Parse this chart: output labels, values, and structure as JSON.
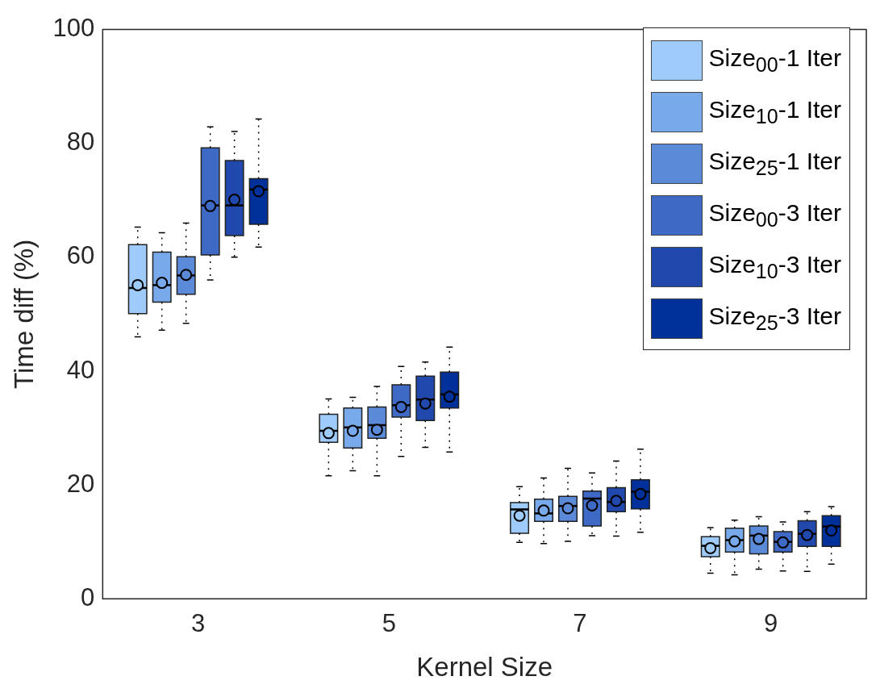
{
  "chart_data": {
    "type": "box",
    "xlabel": "Kernel Size",
    "ylabel": "Time diff (%)",
    "categories": [
      "3",
      "5",
      "7",
      "9"
    ],
    "ylim": [
      0,
      100
    ],
    "yticks": [
      0,
      20,
      40,
      60,
      80,
      100
    ],
    "grid": false,
    "legend": "top right",
    "marker": "circle",
    "series": [
      {
        "name": "Size$_{00}$-1 Iter",
        "color": "#9ecbf9",
        "boxes": [
          {
            "low": 46,
            "q1": 50.1,
            "median": 54.6,
            "q3": 62.2,
            "high": 65.3,
            "mean": 55.1
          },
          {
            "low": 21.6,
            "q1": 27.5,
            "median": 29.5,
            "q3": 32.4,
            "high": 35.1,
            "mean": 29.1
          },
          {
            "low": 9.9,
            "q1": 11.5,
            "median": 15.7,
            "q3": 16.9,
            "high": 19.7,
            "mean": 14.6
          },
          {
            "low": 4.5,
            "q1": 7.4,
            "median": 9.3,
            "q3": 10.9,
            "high": 12.5,
            "mean": 8.9
          }
        ]
      },
      {
        "name": "Size$_{10}$-1 Iter",
        "color": "#78a9ea",
        "boxes": [
          {
            "low": 47.2,
            "q1": 52.1,
            "median": 55.1,
            "q3": 60.9,
            "high": 64.3,
            "mean": 55.5
          },
          {
            "low": 22.5,
            "q1": 26.5,
            "median": 30.1,
            "q3": 33.5,
            "high": 35.4,
            "mean": 29.5
          },
          {
            "low": 9.7,
            "q1": 13.6,
            "median": 15,
            "q3": 17.5,
            "high": 21.2,
            "mean": 15.5
          },
          {
            "low": 4.2,
            "q1": 8.2,
            "median": 10.3,
            "q3": 12.4,
            "high": 13.8,
            "mean": 10.1
          }
        ]
      },
      {
        "name": "Size$_{25}$-1 Iter",
        "color": "#5b8ad8",
        "boxes": [
          {
            "low": 48.4,
            "q1": 53.5,
            "median": 56.8,
            "q3": 60.1,
            "high": 66,
            "mean": 56.9
          },
          {
            "low": 21.6,
            "q1": 28.2,
            "median": 30.5,
            "q3": 33.7,
            "high": 37.3,
            "mean": 29.7
          },
          {
            "low": 10.1,
            "q1": 13.6,
            "median": 16.3,
            "q3": 18,
            "high": 22.9,
            "mean": 15.9
          },
          {
            "low": 5.2,
            "q1": 7.9,
            "median": 11.1,
            "q3": 12.8,
            "high": 14.4,
            "mean": 10.5
          }
        ]
      },
      {
        "name": "Size$_{00}$-3 Iter",
        "color": "#3e69c4",
        "boxes": [
          {
            "low": 56,
            "q1": 60.4,
            "median": 69.1,
            "q3": 79.2,
            "high": 82.9,
            "mean": 69
          },
          {
            "low": 25,
            "q1": 31.9,
            "median": 34,
            "q3": 37.6,
            "high": 40.8,
            "mean": 33.7
          },
          {
            "low": 11.1,
            "q1": 12.8,
            "median": 17.6,
            "q3": 18.9,
            "high": 22.1,
            "mean": 16.4
          },
          {
            "low": 4.9,
            "q1": 8.2,
            "median": 10,
            "q3": 11.8,
            "high": 13.5,
            "mean": 9.9
          }
        ]
      },
      {
        "name": "Size$_{10}$-3 Iter",
        "color": "#2149ad",
        "boxes": [
          {
            "low": 60,
            "q1": 63.8,
            "median": 69.1,
            "q3": 77,
            "high": 82.1,
            "mean": 70.1
          },
          {
            "low": 26.6,
            "q1": 31.3,
            "median": 35,
            "q3": 39.1,
            "high": 41.6,
            "mean": 34.3
          },
          {
            "low": 11,
            "q1": 15.3,
            "median": 17,
            "q3": 19.5,
            "high": 24.2,
            "mean": 17.2
          },
          {
            "low": 4.8,
            "q1": 9.2,
            "median": 11.4,
            "q3": 13.7,
            "high": 15.3,
            "mean": 11.2
          }
        ]
      },
      {
        "name": "Size$_{25}$-3 Iter",
        "color": "#00309a",
        "boxes": [
          {
            "low": 61.8,
            "q1": 65.8,
            "median": 71.9,
            "q3": 73.8,
            "high": 84.3,
            "mean": 71.6
          },
          {
            "low": 25.8,
            "q1": 33.5,
            "median": 35.9,
            "q3": 39.8,
            "high": 44.2,
            "mean": 35.5
          },
          {
            "low": 11.7,
            "q1": 15.8,
            "median": 18.8,
            "q3": 20.9,
            "high": 26.3,
            "mean": 18.4
          },
          {
            "low": 6.1,
            "q1": 9.2,
            "median": 12.7,
            "q3": 14.6,
            "high": 16.2,
            "mean": 12
          }
        ]
      }
    ]
  }
}
